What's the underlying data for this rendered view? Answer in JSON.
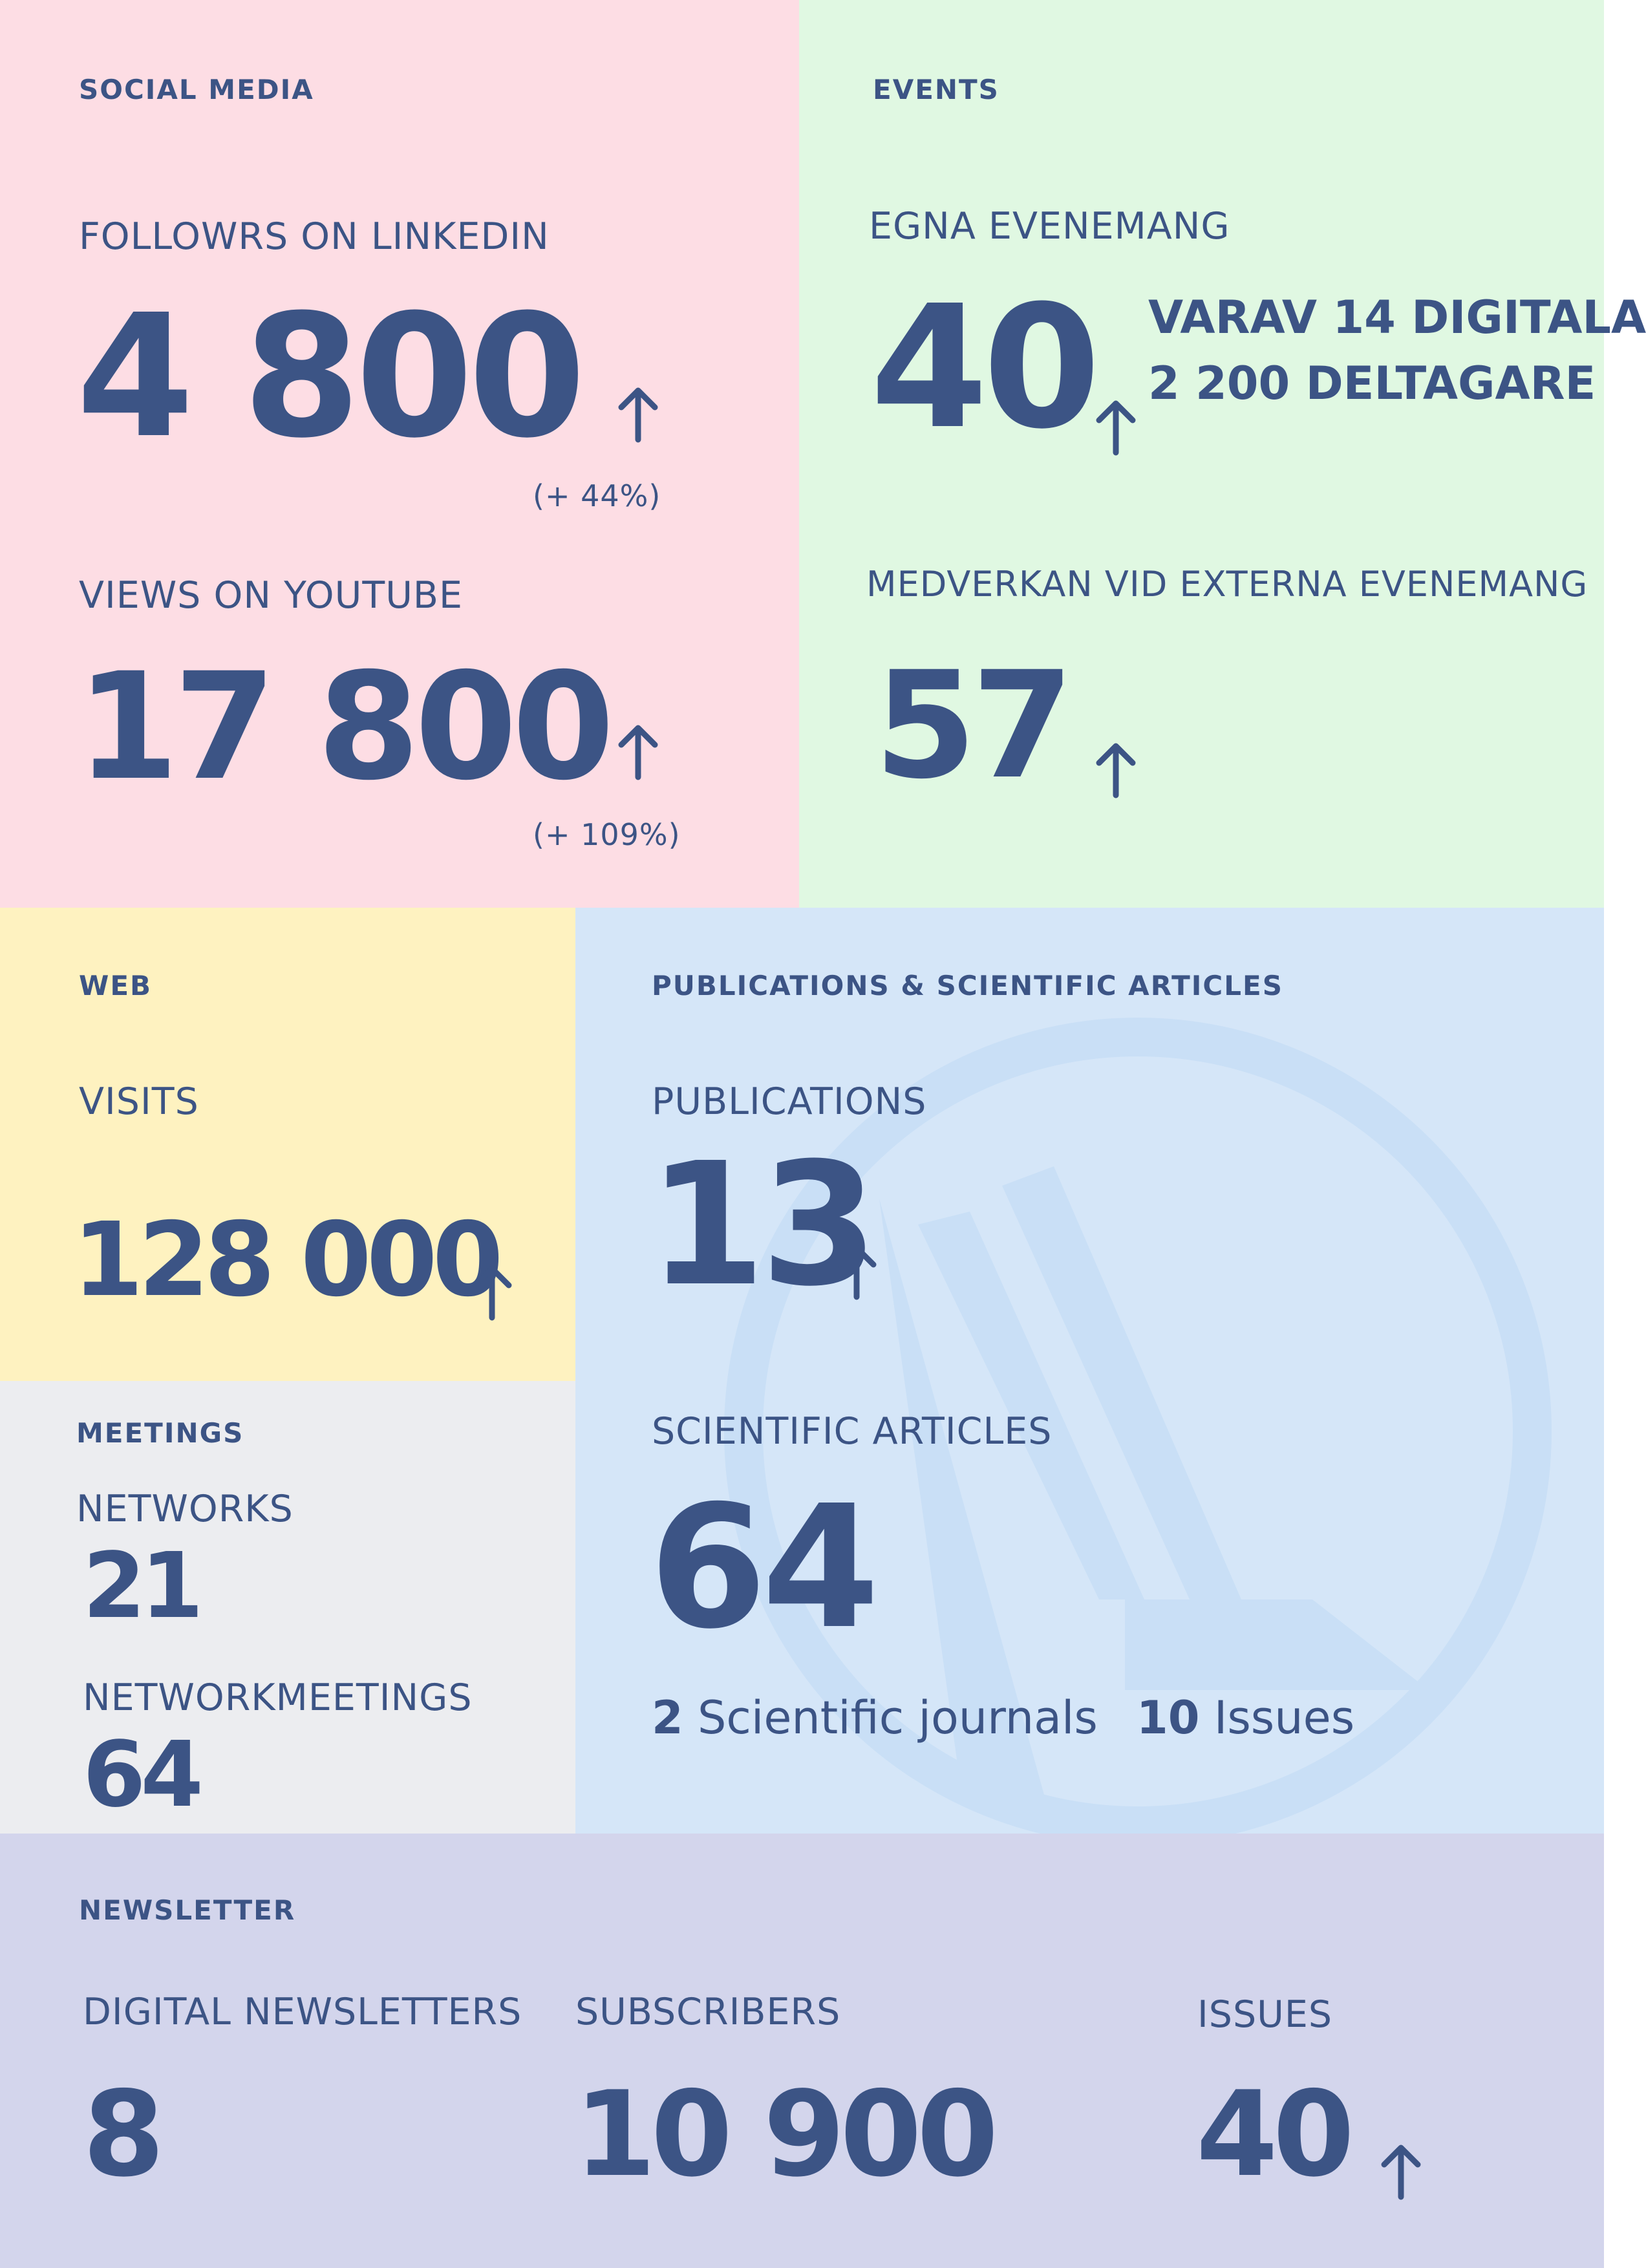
{
  "colors": {
    "text": "#3c5485",
    "social_bg": "#fddde4",
    "events_bg": "#e0f8e2",
    "web_bg": "#fef2c0",
    "meetings_bg": "#ecedf0",
    "publications_bg": "#d5e6f8",
    "newsletter_bg": "#d3d5ec",
    "watermark": "#c9dff6"
  },
  "social": {
    "heading": "SOCIAL MEDIA",
    "linkedin_label": "FOLLOWRS ON LINKEDIN",
    "linkedin_value": "4 800",
    "linkedin_change": "(+ 44%)",
    "youtube_label": "VIEWS ON YOUTUBE",
    "youtube_value": "17 800",
    "youtube_change": "(+ 109%)"
  },
  "events": {
    "heading": "EVENTS",
    "own_label": "EGNA EVENEMANG",
    "own_value": "40",
    "own_note_1": "VARAV 14 DIGITALA",
    "own_note_2": "2 200 DELTAGARE",
    "external_label": "MEDVERKAN VID EXTERNA EVENEMANG",
    "external_value": "57"
  },
  "web": {
    "heading": "WEB",
    "visits_label": "VISITS",
    "visits_value": "128 000"
  },
  "meetings": {
    "heading": "MEETINGS",
    "networks_label": "NETWORKS",
    "networks_value": "21",
    "networkmeetings_label": "NETWORKMEETINGS",
    "networkmeetings_value": "64"
  },
  "publications": {
    "heading": "PUBLICATIONS & SCIENTIFIC ARTICLES",
    "publications_label": "PUBLICATIONS",
    "publications_value": "13",
    "articles_label": "SCIENTIFIC ARTICLES",
    "articles_value": "64",
    "journals_count": "2",
    "journals_label": "Scientific journals",
    "issues_count": "10",
    "issues_label": "Issues"
  },
  "newsletter": {
    "heading": "NEWSLETTER",
    "digital_label": "DIGITAL NEWSLETTERS",
    "digital_value": "8",
    "subscribers_label": "SUBSCRIBERS",
    "subscribers_value": "10 900",
    "issues_label": "ISSUES",
    "issues_value": "40"
  },
  "icons": {
    "increase": "arrow-up-icon",
    "watermark": "logo-watermark"
  }
}
